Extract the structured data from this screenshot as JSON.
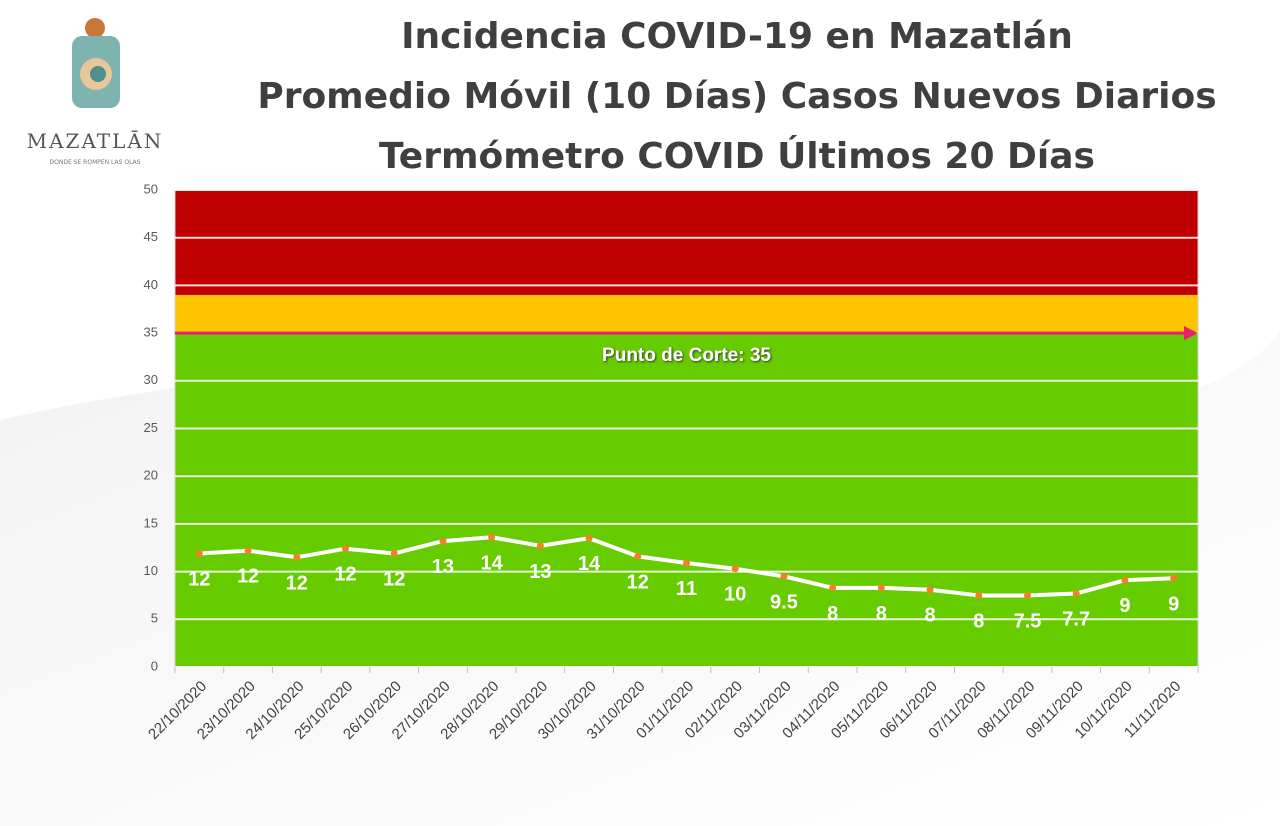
{
  "logo": {
    "name": "MAZATLĀN",
    "tagline": "DONDE SE ROMPEN LAS OLAS"
  },
  "chart_data": {
    "type": "line",
    "title": "Incidencia COVID-19 en Mazatlán",
    "subtitle": [
      "Promedio Móvil (10 Días) Casos Nuevos Diarios",
      "Termómetro COVID Últimos 20 Días"
    ],
    "categories": [
      "22/10/2020",
      "23/10/2020",
      "24/10/2020",
      "25/10/2020",
      "26/10/2020",
      "27/10/2020",
      "28/10/2020",
      "29/10/2020",
      "30/10/2020",
      "31/10/2020",
      "01/11/2020",
      "02/11/2020",
      "03/11/2020",
      "04/11/2020",
      "05/11/2020",
      "06/11/2020",
      "07/11/2020",
      "08/11/2020",
      "09/11/2020",
      "10/11/2020",
      "11/11/2020"
    ],
    "values": [
      11.9,
      12.2,
      11.5,
      12.4,
      11.9,
      13.2,
      13.6,
      12.7,
      13.5,
      11.6,
      10.9,
      10.3,
      9.5,
      8.3,
      8.3,
      8.1,
      7.5,
      7.5,
      7.7,
      9.1,
      9.3
    ],
    "value_labels": [
      "12",
      "12",
      "12",
      "12",
      "12",
      "13",
      "14",
      "13",
      "14",
      "12",
      "11",
      "10",
      "9.5",
      "8",
      "8",
      "8",
      "8",
      "7.5",
      "7.7",
      "9",
      "9"
    ],
    "color": "#ffffff",
    "marker_color": "#f0802a",
    "ylim": [
      0,
      50
    ],
    "yticks": [
      0,
      5,
      10,
      15,
      20,
      25,
      30,
      35,
      40,
      45,
      50
    ],
    "grid": true,
    "bands": [
      {
        "from": 0,
        "to": 35,
        "color": "#66cc00"
      },
      {
        "from": 35,
        "to": 39,
        "color": "#ffc400"
      },
      {
        "from": 39,
        "to": 50,
        "color": "#c00000"
      }
    ],
    "threshold": {
      "value": 35,
      "label": "Punto de Corte: 35",
      "color": "#e8206e"
    }
  }
}
